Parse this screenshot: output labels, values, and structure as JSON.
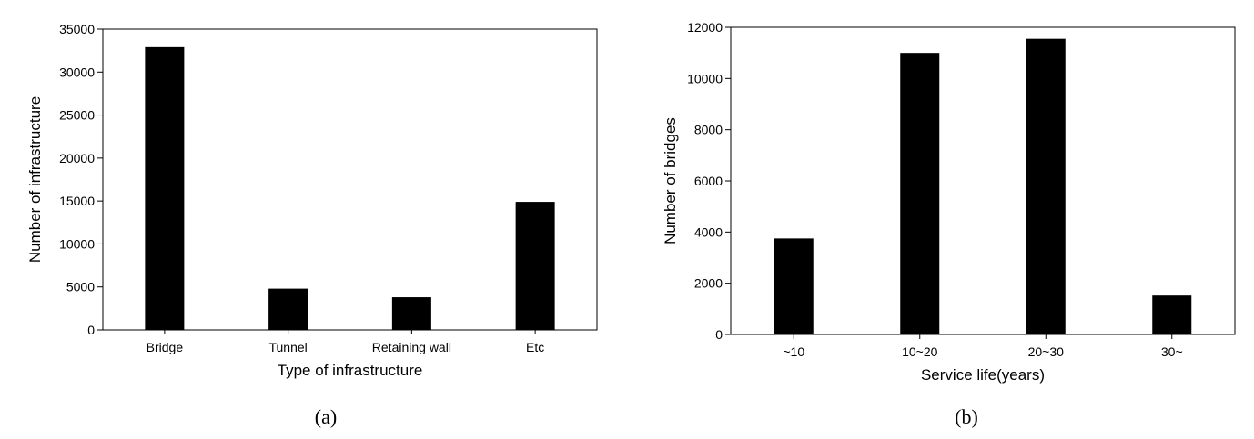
{
  "chart_data": [
    {
      "type": "bar",
      "categories": [
        "Bridge",
        "Tunnel",
        "Retaining wall",
        "Etc"
      ],
      "values": [
        32900,
        4800,
        3800,
        14900
      ],
      "xlabel": "Type of infrastructure",
      "ylabel": "Number of infrastructure",
      "ylim": [
        0,
        35000
      ],
      "yticks": [
        0,
        5000,
        10000,
        15000,
        20000,
        25000,
        30000,
        35000
      ],
      "grid": false,
      "bar_color": "#000000",
      "caption": "(a)"
    },
    {
      "type": "bar",
      "categories": [
        "~10",
        "10~20",
        "20~30",
        "30~"
      ],
      "values": [
        3750,
        11000,
        11550,
        1520
      ],
      "xlabel": "Service life(years)",
      "ylabel": "Number of bridges",
      "ylim": [
        0,
        12000
      ],
      "yticks": [
        0,
        2000,
        4000,
        6000,
        8000,
        10000,
        12000
      ],
      "grid": false,
      "bar_color": "#000000",
      "caption": "(b)"
    }
  ]
}
